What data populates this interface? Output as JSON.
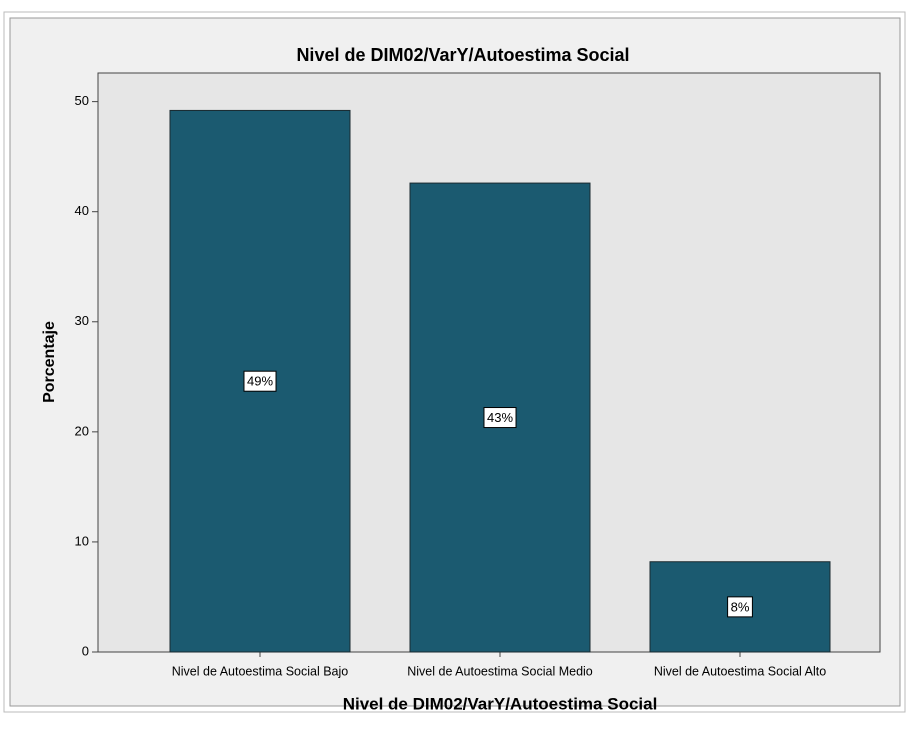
{
  "chart_data": {
    "type": "bar",
    "title": "Nivel de DIM02/VarY/Autoestima Social",
    "x_label": "Nivel de DIM02/VarY/Autoestima Social",
    "y_label": "Porcentaje",
    "categories": [
      "Nivel de Autoestima Social Bajo",
      "Nivel de Autoestima Social Medio",
      "Nivel de Autoestima Social Alto"
    ],
    "values": [
      49.2,
      42.6,
      8.2
    ],
    "value_labels": [
      "49%",
      "43%",
      "8%"
    ],
    "color": "#1b5a70",
    "ylim": [
      0,
      52.6
    ],
    "yticks": [
      0,
      10,
      20,
      30,
      40,
      50
    ]
  }
}
